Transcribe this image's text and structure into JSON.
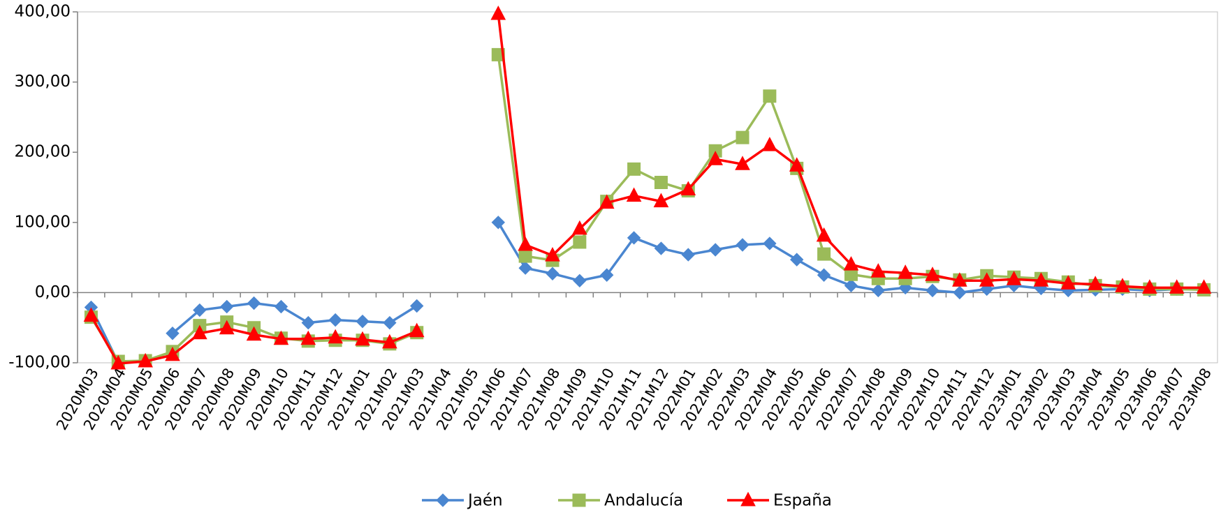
{
  "chart_data": {
    "type": "line",
    "categories": [
      "2020M03",
      "2020M04",
      "2020M05",
      "2020M06",
      "2020M07",
      "2020M08",
      "2020M09",
      "2020M10",
      "2020M11",
      "2020M12",
      "2021M01",
      "2021M02",
      "2021M03",
      "2021M04",
      "2021M05",
      "2021M06",
      "2021M07",
      "2021M08",
      "2021M09",
      "2021M10",
      "2021M11",
      "2021M12",
      "2022M01",
      "2022M02",
      "2022M03",
      "2022M04",
      "2022M05",
      "2022M06",
      "2022M07",
      "2022M08",
      "2022M09",
      "2022M10",
      "2022M11",
      "2022M12",
      "2023M01",
      "2023M02",
      "2023M03",
      "2023M04",
      "2023M05",
      "2023M06",
      "2023M07",
      "2023M08"
    ],
    "series": [
      {
        "name": "Jaén",
        "color": "#4a86d0",
        "marker": "diamond",
        "values": [
          -21,
          -100,
          null,
          -58,
          -25,
          -20,
          -15,
          -20,
          -43,
          -39,
          -41,
          -43,
          -19,
          null,
          null,
          100,
          35,
          27,
          17,
          25,
          78,
          63,
          54,
          61,
          68,
          70,
          47,
          25,
          10,
          3,
          7,
          3,
          0,
          5,
          10,
          6,
          3,
          4,
          5,
          3,
          5,
          5
        ]
      },
      {
        "name": "Andalucía",
        "color": "#9bbb59",
        "marker": "square",
        "values": [
          -35,
          -98,
          -97,
          -84,
          -47,
          -42,
          -50,
          -65,
          -69,
          -68,
          -68,
          -73,
          -57,
          null,
          null,
          339,
          52,
          46,
          72,
          130,
          176,
          157,
          145,
          202,
          221,
          280,
          177,
          55,
          26,
          20,
          20,
          23,
          18,
          24,
          22,
          20,
          15,
          10,
          8,
          5,
          5,
          4
        ]
      },
      {
        "name": "España",
        "color": "#ff0000",
        "marker": "triangle",
        "values": [
          -33,
          -101,
          -98,
          -89,
          -58,
          -51,
          -60,
          -66,
          -66,
          -64,
          -67,
          -71,
          -55,
          null,
          null,
          397,
          68,
          53,
          91,
          128,
          138,
          130,
          147,
          190,
          183,
          210,
          181,
          81,
          40,
          30,
          28,
          25,
          17,
          17,
          19,
          17,
          13,
          12,
          9,
          7,
          7,
          7
        ]
      }
    ],
    "ylim": [
      -100,
      400
    ],
    "yticks": [
      {
        "value": -100,
        "label": "-100,00"
      },
      {
        "value": 0,
        "label": "0,00"
      },
      {
        "value": 100,
        "label": "100,00"
      },
      {
        "value": 200,
        "label": "200,00"
      },
      {
        "value": 300,
        "label": "300,00"
      },
      {
        "value": 400,
        "label": "400,00"
      }
    ],
    "legend": "bottom"
  }
}
